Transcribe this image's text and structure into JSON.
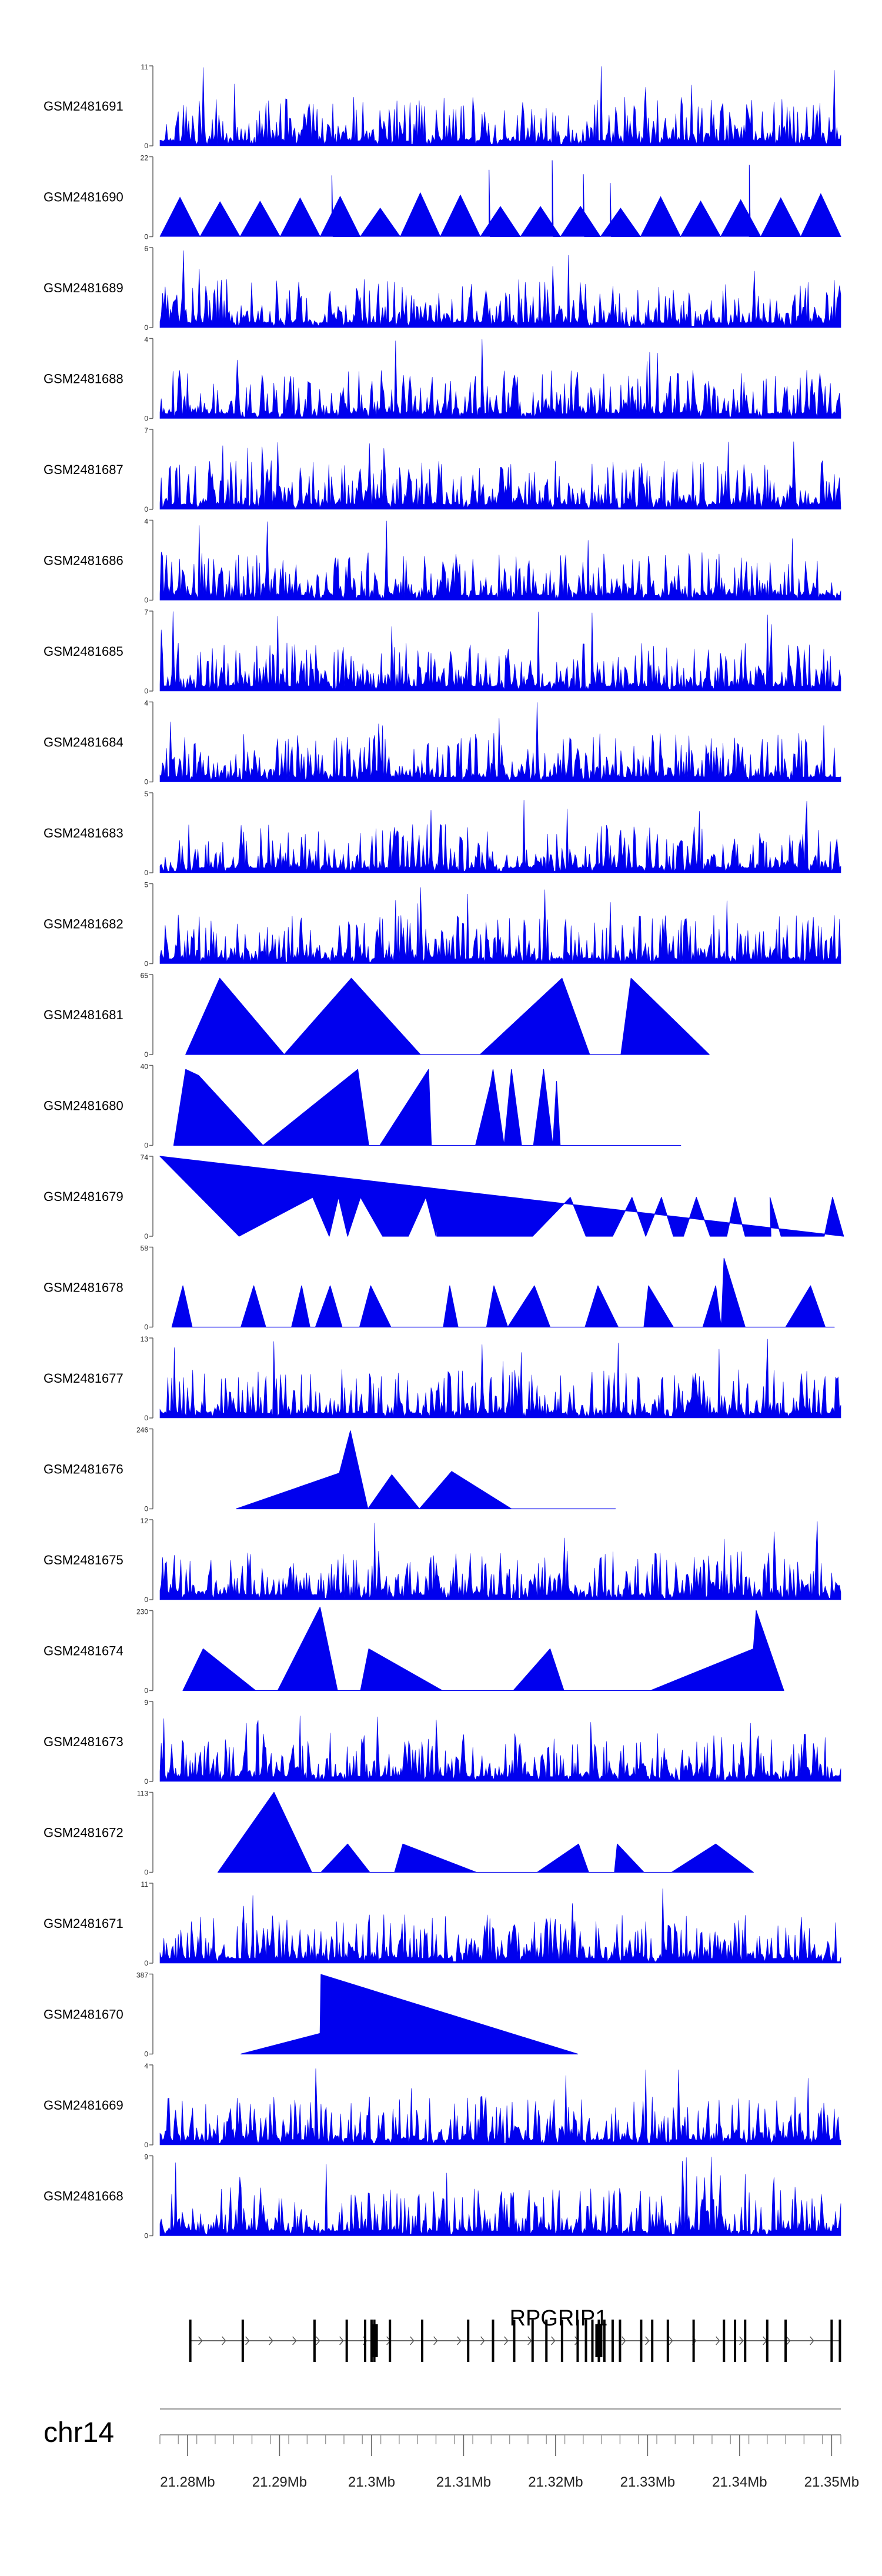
{
  "chart_data": {
    "type": "area",
    "description_free": true,
    "region": {
      "chromosome": "chr14",
      "start_mb": 21.277,
      "end_mb": 21.351
    },
    "fill_color": "#0000ee",
    "tracks": [
      {
        "name": "GSM2481691",
        "ymax": 11,
        "style": "dense"
      },
      {
        "name": "GSM2481690",
        "ymax": 22,
        "style": "triangles"
      },
      {
        "name": "GSM2481689",
        "ymax": 6,
        "style": "dense"
      },
      {
        "name": "GSM2481688",
        "ymax": 4,
        "style": "dense"
      },
      {
        "name": "GSM2481687",
        "ymax": 7,
        "style": "dense"
      },
      {
        "name": "GSM2481686",
        "ymax": 4,
        "style": "dense"
      },
      {
        "name": "GSM2481685",
        "ymax": 7,
        "style": "dense"
      },
      {
        "name": "GSM2481684",
        "ymax": 4,
        "style": "dense"
      },
      {
        "name": "GSM2481683",
        "ymax": 5,
        "style": "dense"
      },
      {
        "name": "GSM2481682",
        "ymax": 5,
        "style": "dense"
      },
      {
        "name": "GSM2481681",
        "ymax": 65,
        "style": "triangles",
        "points": [
          [
            21.2798,
            0
          ],
          [
            21.2835,
            62
          ],
          [
            21.2905,
            0
          ],
          [
            21.2978,
            62
          ],
          [
            21.3053,
            0
          ],
          [
            21.3118,
            0
          ],
          [
            21.3207,
            62
          ],
          [
            21.3237,
            0
          ],
          [
            21.3271,
            0
          ],
          [
            21.3282,
            62
          ],
          [
            21.3367,
            0
          ]
        ]
      },
      {
        "name": "GSM2481680",
        "ymax": 40,
        "style": "triangles",
        "points": [
          [
            21.2785,
            0
          ],
          [
            21.2798,
            38
          ],
          [
            21.2812,
            35
          ],
          [
            21.2882,
            0
          ],
          [
            21.2985,
            38
          ],
          [
            21.2997,
            0
          ],
          [
            21.3009,
            0
          ],
          [
            21.3062,
            38
          ],
          [
            21.3065,
            0
          ],
          [
            21.3113,
            0
          ],
          [
            21.3129,
            30
          ],
          [
            21.3132,
            38
          ],
          [
            21.3144,
            0
          ],
          [
            21.3152,
            38
          ],
          [
            21.3163,
            0
          ],
          [
            21.3176,
            0
          ],
          [
            21.3187,
            38
          ],
          [
            21.3197,
            0
          ],
          [
            21.3201,
            32
          ],
          [
            21.3205,
            0
          ],
          [
            21.3212,
            0
          ],
          [
            21.3223,
            0
          ],
          [
            21.3224,
            0
          ],
          [
            21.3225,
            0
          ],
          [
            21.3227,
            0
          ],
          [
            21.3231,
            0
          ],
          [
            21.3235,
            0
          ],
          [
            21.3238,
            0
          ],
          [
            21.3244,
            0
          ],
          [
            21.3248,
            0
          ],
          [
            21.3336,
            0
          ]
        ]
      },
      {
        "name": "GSM2481679",
        "ymax": 74,
        "style": "triangles",
        "points": [
          [
            21.277,
            74
          ],
          [
            21.2856,
            0
          ],
          [
            21.2936,
            36
          ],
          [
            21.2954,
            0
          ],
          [
            21.2964,
            36
          ],
          [
            21.2974,
            0
          ],
          [
            21.2988,
            36
          ],
          [
            21.3012,
            0
          ],
          [
            21.304,
            0
          ],
          [
            21.3059,
            36
          ],
          [
            21.307,
            0
          ],
          [
            21.3075,
            36
          ],
          [
            21.3071,
            0
          ],
          [
            21.3075,
            0
          ],
          [
            21.3113,
            0
          ],
          [
            21.3154,
            0
          ],
          [
            21.3175,
            0
          ],
          [
            21.3216,
            36
          ],
          [
            21.3233,
            0
          ],
          [
            21.3262,
            0
          ],
          [
            21.3283,
            36
          ],
          [
            21.3298,
            0
          ],
          [
            21.3315,
            36
          ],
          [
            21.3328,
            0
          ],
          [
            21.3339,
            0
          ],
          [
            21.3353,
            36
          ],
          [
            21.3368,
            0
          ],
          [
            21.3386,
            0
          ],
          [
            21.3395,
            36
          ],
          [
            21.3406,
            0
          ],
          [
            21.3425,
            0
          ],
          [
            21.3434,
            0
          ],
          [
            21.3433,
            36
          ],
          [
            21.3445,
            0
          ],
          [
            21.346,
            0
          ],
          [
            21.3492,
            0
          ],
          [
            21.3501,
            36
          ],
          [
            21.3513,
            0
          ]
        ]
      },
      {
        "name": "GSM2481678",
        "ymax": 58,
        "style": "triangles",
        "points": [
          [
            21.2783,
            0
          ],
          [
            21.2795,
            30
          ],
          [
            21.2805,
            0
          ],
          [
            21.2813,
            0
          ],
          [
            21.2832,
            0
          ],
          [
            21.2858,
            0
          ],
          [
            21.2872,
            30
          ],
          [
            21.2885,
            0
          ],
          [
            21.2913,
            0
          ],
          [
            21.2924,
            30
          ],
          [
            21.2933,
            0
          ],
          [
            21.2939,
            0
          ],
          [
            21.2955,
            30
          ],
          [
            21.2968,
            0
          ],
          [
            21.2987,
            0
          ],
          [
            21.2999,
            30
          ],
          [
            21.3021,
            0
          ],
          [
            21.3048,
            0
          ],
          [
            21.3078,
            0
          ],
          [
            21.3085,
            30
          ],
          [
            21.3094,
            0
          ],
          [
            21.3105,
            0
          ],
          [
            21.3112,
            0
          ],
          [
            21.3125,
            0
          ],
          [
            21.3133,
            30
          ],
          [
            21.3148,
            0
          ],
          [
            21.3177,
            30
          ],
          [
            21.3194,
            0
          ],
          [
            21.3232,
            0
          ],
          [
            21.3246,
            30
          ],
          [
            21.3268,
            0
          ],
          [
            21.3285,
            0
          ],
          [
            21.3296,
            0
          ],
          [
            21.3301,
            30
          ],
          [
            21.3328,
            0
          ],
          [
            21.336,
            0
          ],
          [
            21.3374,
            30
          ],
          [
            21.338,
            0
          ],
          [
            21.3383,
            50
          ],
          [
            21.3406,
            0
          ],
          [
            21.345,
            0
          ],
          [
            21.3477,
            30
          ],
          [
            21.3493,
            0
          ],
          [
            21.3503,
            0
          ]
        ]
      },
      {
        "name": "GSM2481677",
        "ymax": 13,
        "style": "dense"
      },
      {
        "name": "GSM2481676",
        "ymax": 246,
        "style": "triangles",
        "points": [
          [
            21.2853,
            0
          ],
          [
            21.2965,
            110
          ],
          [
            21.2977,
            240
          ],
          [
            21.2996,
            0
          ],
          [
            21.3022,
            105
          ],
          [
            21.3052,
            0
          ],
          [
            21.3087,
            115
          ],
          [
            21.3152,
            0
          ],
          [
            21.3265,
            0
          ]
        ]
      },
      {
        "name": "GSM2481675",
        "ymax": 12,
        "style": "dense"
      },
      {
        "name": "GSM2481674",
        "ymax": 230,
        "style": "triangles",
        "points": [
          [
            21.2795,
            0
          ],
          [
            21.2817,
            120
          ],
          [
            21.2874,
            0
          ],
          [
            21.2898,
            0
          ],
          [
            21.2944,
            240
          ],
          [
            21.2963,
            0
          ],
          [
            21.2988,
            0
          ],
          [
            21.2997,
            120
          ],
          [
            21.3077,
            0
          ],
          [
            21.3154,
            0
          ],
          [
            21.3194,
            120
          ],
          [
            21.3209,
            0
          ],
          [
            21.3235,
            0
          ],
          [
            21.3295,
            0
          ],
          [
            21.3303,
            0
          ],
          [
            21.3415,
            120
          ],
          [
            21.3418,
            230
          ],
          [
            21.3448,
            0
          ]
        ]
      },
      {
        "name": "GSM2481673",
        "ymax": 9,
        "style": "dense"
      },
      {
        "name": "GSM2481672",
        "ymax": 113,
        "style": "triangles",
        "points": [
          [
            21.2833,
            0
          ],
          [
            21.2894,
            113
          ],
          [
            21.2935,
            0
          ],
          [
            21.2945,
            0
          ],
          [
            21.2974,
            40
          ],
          [
            21.2998,
            0
          ],
          [
            21.3025,
            0
          ],
          [
            21.3034,
            40
          ],
          [
            21.3114,
            0
          ],
          [
            21.318,
            0
          ],
          [
            21.3225,
            40
          ],
          [
            21.3236,
            0
          ],
          [
            21.3264,
            0
          ],
          [
            21.3267,
            40
          ],
          [
            21.3296,
            0
          ],
          [
            21.3326,
            0
          ],
          [
            21.3374,
            40
          ],
          [
            21.3415,
            0
          ]
        ]
      },
      {
        "name": "GSM2481671",
        "ymax": 11,
        "style": "dense"
      },
      {
        "name": "GSM2481670",
        "ymax": 387,
        "style": "triangles",
        "points": [
          [
            21.2858,
            0
          ],
          [
            21.2944,
            100
          ],
          [
            21.2945,
            385
          ],
          [
            21.3224,
            0
          ]
        ]
      },
      {
        "name": "GSM2481669",
        "ymax": 4,
        "style": "dense"
      },
      {
        "name": "GSM2481668",
        "ymax": 9,
        "style": "dense"
      }
    ],
    "gene": {
      "name": "RPGRIP1",
      "start_mb": 21.2803,
      "end_mb": 21.3509,
      "strand": "+",
      "exons_mb": [
        21.2803,
        21.286,
        21.2938,
        21.2973,
        21.2993,
        21.3,
        21.3003,
        21.302,
        21.3055,
        21.3105,
        21.3132,
        21.3155,
        21.3175,
        21.319,
        21.3207,
        21.3224,
        21.3233,
        21.324,
        21.3247,
        21.3253,
        21.3262,
        21.327,
        21.3293,
        21.3305,
        21.3322,
        21.335,
        21.3383,
        21.3395,
        21.3406,
        21.343,
        21.345,
        21.35,
        21.3509
      ],
      "thick_exons_mb": [
        21.3003,
        21.3247
      ]
    },
    "axis": {
      "chrom_label": "chr14",
      "tick_labels": [
        "21.28Mb",
        "21.29Mb",
        "21.3Mb",
        "21.31Mb",
        "21.32Mb",
        "21.33Mb",
        "21.34Mb",
        "21.35Mb"
      ],
      "tick_values_mb": [
        21.28,
        21.29,
        21.3,
        21.31,
        21.32,
        21.33,
        21.34,
        21.35
      ],
      "minor_step_mb": 0.002
    }
  }
}
